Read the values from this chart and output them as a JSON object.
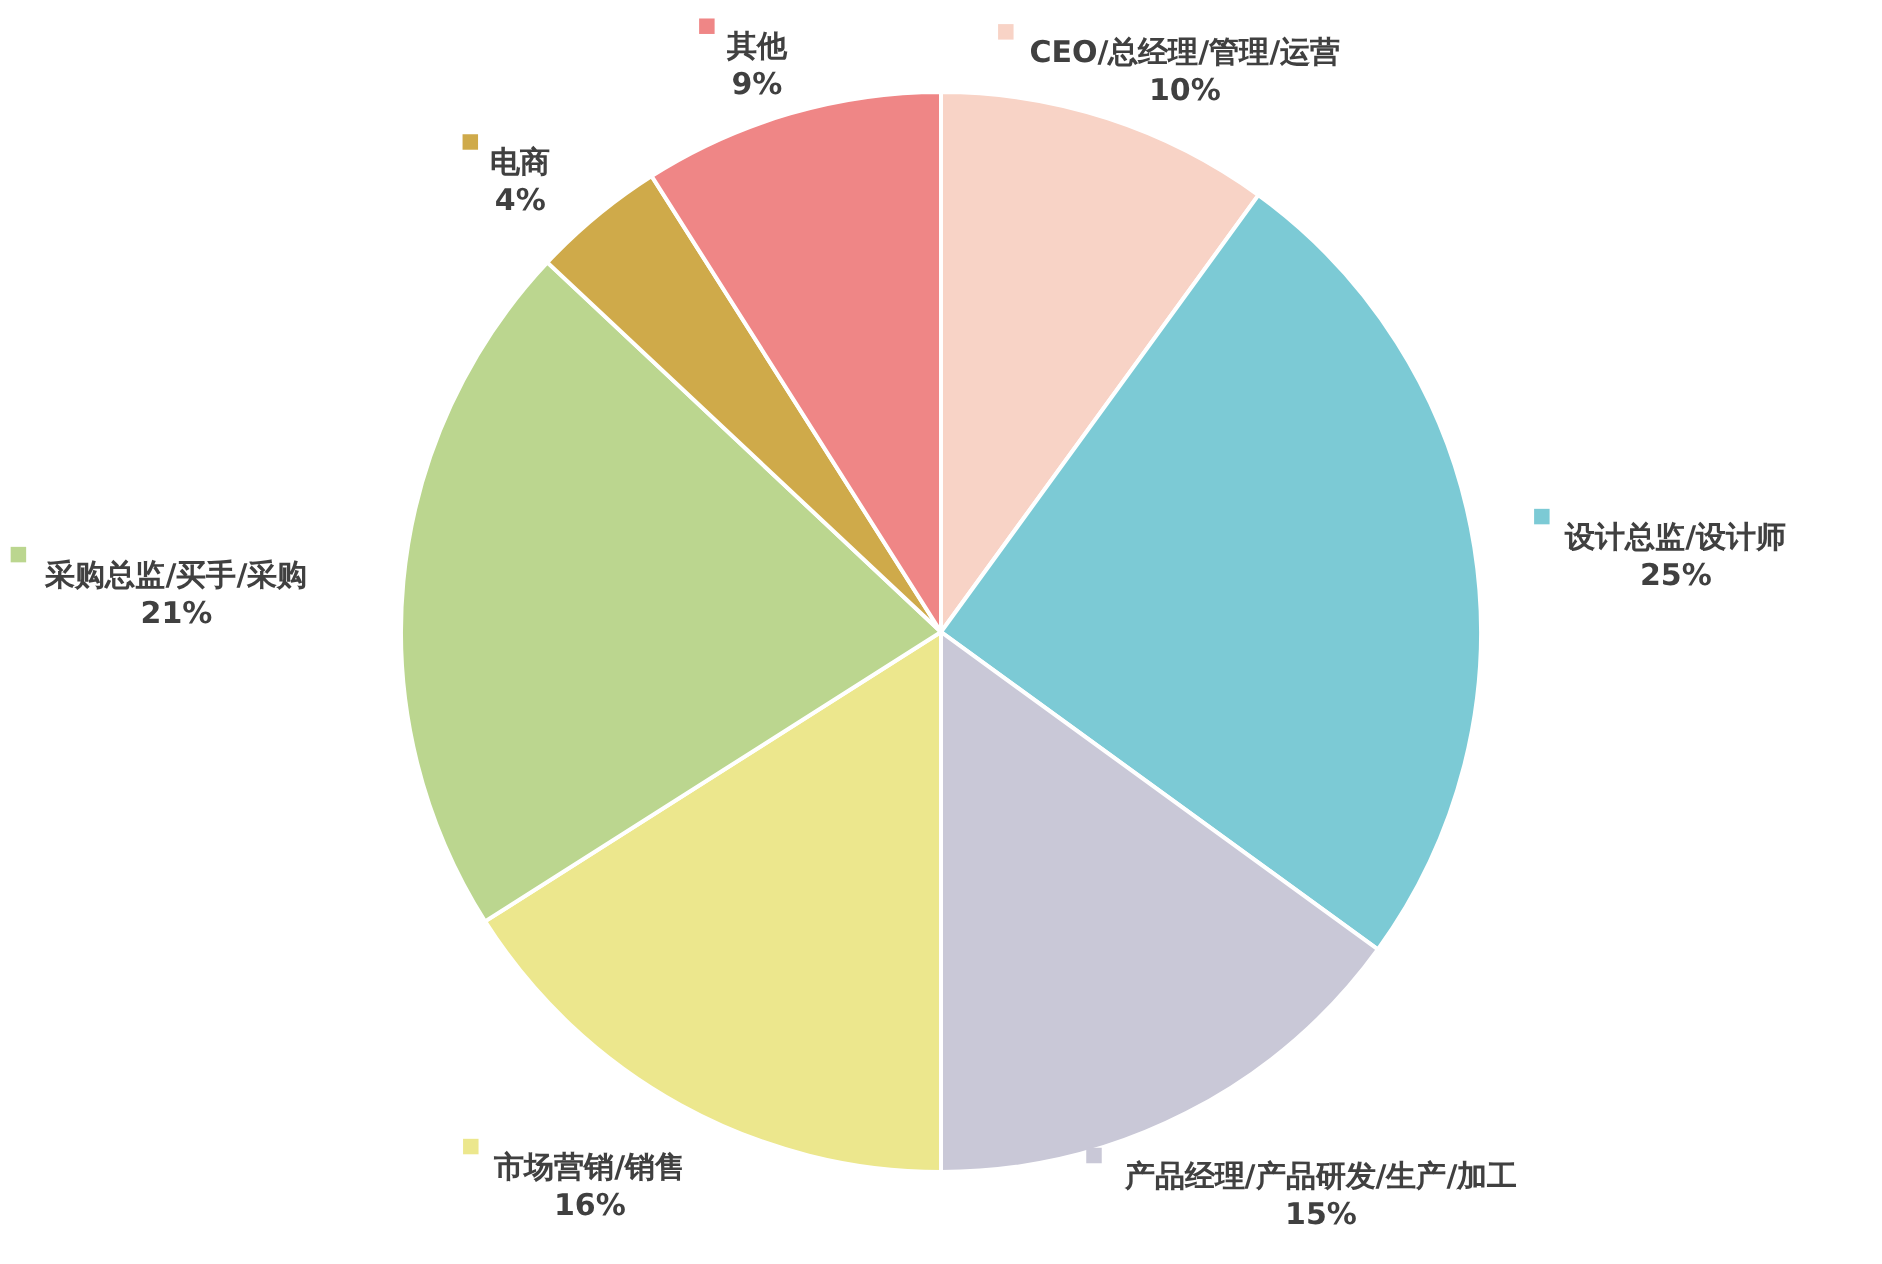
{
  "chart_data": {
    "type": "pie",
    "categories": [
      "CEO/总经理/管理/运营",
      "设计总监/设计师",
      "产品经理/产品研发/生产/加工",
      "市场营销/销售",
      "采购总监/买手/采购",
      "电商",
      "其他"
    ],
    "values": [
      10,
      25,
      15,
      16,
      21,
      4,
      9
    ],
    "value_labels": [
      "10%",
      "25%",
      "15%",
      "16%",
      "21%",
      "4%",
      "9%"
    ],
    "legend": "right",
    "colors": [
      "#f8d3c6",
      "#7ccad5",
      "#c9c8d7",
      "#ece78d",
      "#bbd68f",
      "#cfaa4a",
      "#ef8686"
    ]
  }
}
